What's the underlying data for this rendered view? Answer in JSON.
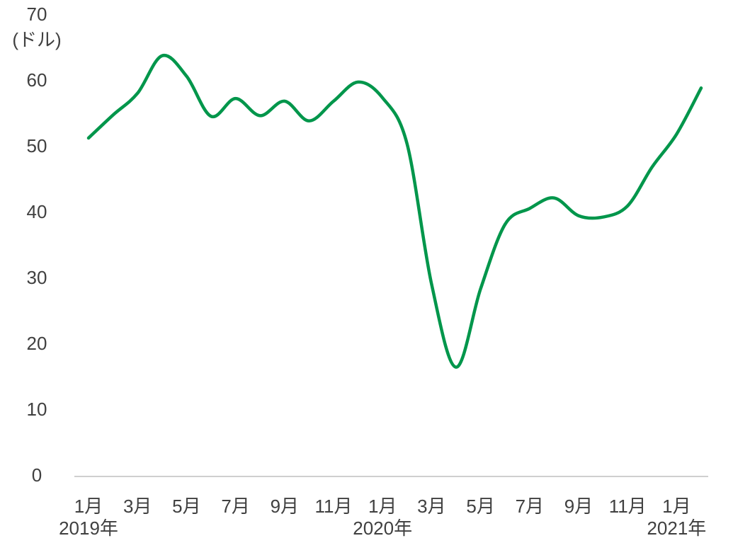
{
  "chart_data": {
    "type": "line",
    "y_label": "(ドル)",
    "categories": [
      "1月",
      null,
      "3月",
      null,
      "5月",
      null,
      "7月",
      null,
      "9月",
      null,
      "11月",
      null,
      "1月",
      null,
      "3月",
      null,
      "5月",
      null,
      "7月",
      null,
      "9月",
      null,
      "11月",
      null,
      "1月",
      null
    ],
    "year_labels": [
      "2019年",
      null,
      null,
      null,
      null,
      null,
      null,
      null,
      null,
      null,
      null,
      null,
      "2020年",
      null,
      null,
      null,
      null,
      null,
      null,
      null,
      null,
      null,
      null,
      null,
      "2021年",
      null
    ],
    "series": [
      {
        "color": "#00964b",
        "values": [
          51.4,
          54.9,
          58.2,
          63.9,
          60.8,
          54.7,
          57.4,
          54.8,
          57.0,
          54.0,
          57.0,
          59.9,
          57.5,
          50.5,
          29.2,
          16.6,
          28.5,
          38.3,
          40.7,
          42.3,
          39.6,
          39.4,
          41.1,
          47.0,
          52.0,
          59.0
        ]
      }
    ],
    "ylim": [
      0,
      70
    ],
    "yticks": [
      0,
      10,
      20,
      30,
      40,
      50,
      60,
      70
    ],
    "grid": false
  }
}
